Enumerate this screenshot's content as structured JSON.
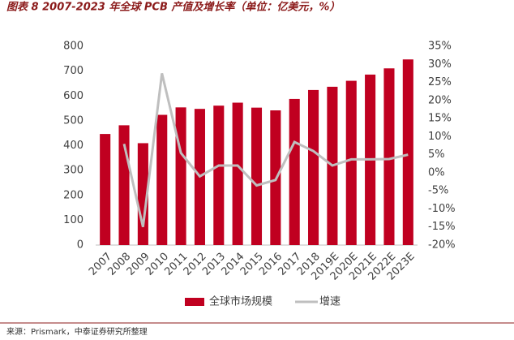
{
  "chart_data": {
    "type": "bar_line",
    "title": "图表 8 2007-2023 年全球 PCB 产值及增长率（单位：亿美元，%）",
    "source": "来源：Prismark，中泰证券研究所整理",
    "categories": [
      "2007",
      "2008",
      "2009",
      "2010",
      "2011",
      "2012",
      "2013",
      "2014",
      "2015",
      "2016",
      "2017",
      "2018",
      "2019E",
      "2020E",
      "2021E",
      "2022E",
      "2023E"
    ],
    "series": [
      {
        "name": "全球市场规模",
        "color": "#c00020",
        "type": "bar",
        "values": [
          447,
          482,
          410,
          524,
          554,
          548,
          561,
          573,
          553,
          542,
          588,
          624,
          637,
          661,
          686,
          711,
          747
        ]
      },
      {
        "name": "增速",
        "color": "#bfbfbf",
        "type": "line",
        "axis": "y2",
        "values": [
          null,
          8,
          -15,
          27.5,
          5.5,
          -1,
          2,
          2,
          -3.5,
          -2,
          8.5,
          6,
          2,
          3.7,
          3.7,
          3.8,
          5
        ]
      }
    ],
    "ylim": [
      0,
      800
    ],
    "yticks": [
      0,
      100,
      200,
      300,
      400,
      500,
      600,
      700,
      800
    ],
    "y2lim": [
      -20,
      35
    ],
    "y2ticks": [
      {
        "value": -20,
        "label": "-20%"
      },
      {
        "value": -15,
        "label": "-15%"
      },
      {
        "value": -10,
        "label": "-10%"
      },
      {
        "value": -5,
        "label": "-5%"
      },
      {
        "value": 0,
        "label": "0%"
      },
      {
        "value": 5,
        "label": "5%"
      },
      {
        "value": 10,
        "label": "10%"
      },
      {
        "value": 15,
        "label": "15%"
      },
      {
        "value": 20,
        "label": "20%"
      },
      {
        "value": 25,
        "label": "25%"
      },
      {
        "value": 30,
        "label": "30%"
      },
      {
        "value": 35,
        "label": "35%"
      }
    ]
  }
}
